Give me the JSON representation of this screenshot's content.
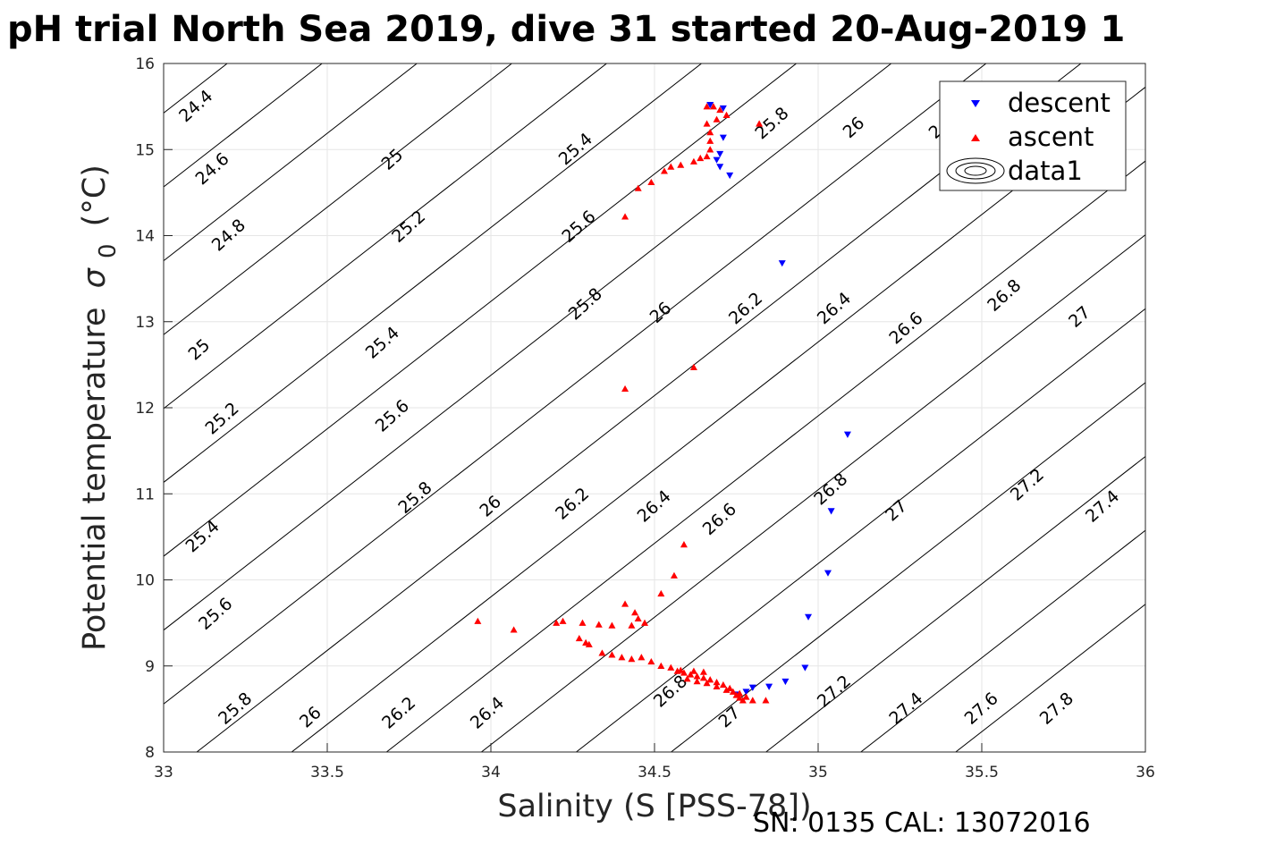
{
  "chart_data": {
    "type": "scatter",
    "title": "pH trial North Sea 2019, dive 31 started 20-Aug-2019 1",
    "xlabel": "Salinity (S [PSS-78])",
    "ylabel": "Potential temperature",
    "ylabel_symbol": "σ",
    "ylabel_sub": "0",
    "ylabel_unit": "(°C)",
    "footer": "SN: 0135  CAL: 13072016",
    "xlim": [
      33,
      36
    ],
    "ylim": [
      8,
      16
    ],
    "xticks": [
      "33",
      "33.5",
      "34",
      "34.5",
      "35",
      "35.5",
      "36"
    ],
    "yticks": [
      "8",
      "9",
      "10",
      "11",
      "12",
      "13",
      "14",
      "15",
      "16"
    ],
    "grid": true,
    "legend_position": "top-right",
    "legend": [
      "descent",
      "ascent",
      "data1"
    ],
    "contour_levels": [
      24.4,
      24.6,
      24.8,
      25,
      25.2,
      25.4,
      25.6,
      25.8,
      26,
      26.2,
      26.4,
      26.6,
      26.8,
      27,
      27.2,
      27.4,
      27.6,
      27.8
    ],
    "contour_labels": [
      {
        "t": "24.4",
        "s": 33.1,
        "y": 15.5
      },
      {
        "t": "24.6",
        "s": 33.15,
        "y": 14.77
      },
      {
        "t": "24.8",
        "s": 33.2,
        "y": 14.0
      },
      {
        "t": "25",
        "s": 33.11,
        "y": 12.67
      },
      {
        "t": "25.2",
        "s": 33.18,
        "y": 11.87
      },
      {
        "t": "25.4",
        "s": 33.12,
        "y": 10.5
      },
      {
        "t": "25.6",
        "s": 33.16,
        "y": 9.6
      },
      {
        "t": "25.8",
        "s": 33.22,
        "y": 8.5
      },
      {
        "t": "26",
        "s": 33.45,
        "y": 8.4
      },
      {
        "t": "26.2",
        "s": 33.72,
        "y": 8.45
      },
      {
        "t": "26.4",
        "s": 33.99,
        "y": 8.45
      },
      {
        "t": "26.8",
        "s": 34.55,
        "y": 8.7
      },
      {
        "t": "27",
        "s": 34.73,
        "y": 8.4
      },
      {
        "t": "27.2",
        "s": 35.05,
        "y": 8.7
      },
      {
        "t": "27.4",
        "s": 35.27,
        "y": 8.5
      },
      {
        "t": "27.6",
        "s": 35.5,
        "y": 8.5
      },
      {
        "t": "27.8",
        "s": 35.73,
        "y": 8.5
      },
      {
        "t": "25",
        "s": 33.7,
        "y": 14.88
      },
      {
        "t": "25.2",
        "s": 33.75,
        "y": 14.1
      },
      {
        "t": "25.4",
        "s": 33.67,
        "y": 12.75
      },
      {
        "t": "25.6",
        "s": 33.7,
        "y": 11.9
      },
      {
        "t": "25.8",
        "s": 33.77,
        "y": 10.95
      },
      {
        "t": "26",
        "s": 34.0,
        "y": 10.85
      },
      {
        "t": "26.2",
        "s": 34.25,
        "y": 10.88
      },
      {
        "t": "26.4",
        "s": 34.5,
        "y": 10.85
      },
      {
        "t": "26.6",
        "s": 34.7,
        "y": 10.7
      },
      {
        "t": "26.8",
        "s": 35.04,
        "y": 11.05
      },
      {
        "t": "27",
        "s": 35.24,
        "y": 10.8
      },
      {
        "t": "27.2",
        "s": 35.64,
        "y": 11.1
      },
      {
        "t": "27.4",
        "s": 35.87,
        "y": 10.85
      },
      {
        "t": "25.4",
        "s": 34.26,
        "y": 15.0
      },
      {
        "t": "25.6",
        "s": 34.27,
        "y": 14.1
      },
      {
        "t": "25.8",
        "s": 34.29,
        "y": 13.2
      },
      {
        "t": "26",
        "s": 34.52,
        "y": 13.1
      },
      {
        "t": "26.2",
        "s": 34.78,
        "y": 13.15
      },
      {
        "t": "26.4",
        "s": 35.05,
        "y": 13.15
      },
      {
        "t": "26.6",
        "s": 35.27,
        "y": 12.92
      },
      {
        "t": "26.8",
        "s": 35.57,
        "y": 13.3
      },
      {
        "t": "27",
        "s": 35.8,
        "y": 13.05
      },
      {
        "t": "25.8",
        "s": 34.86,
        "y": 15.3
      },
      {
        "t": "26",
        "s": 35.11,
        "y": 15.25
      },
      {
        "t": "2",
        "s": 35.36,
        "y": 15.2
      }
    ],
    "series": [
      {
        "name": "descent",
        "marker": "triangle-down",
        "color": "#0000ff",
        "points": [
          [
            34.67,
            15.52
          ],
          [
            34.71,
            15.48
          ],
          [
            34.71,
            15.14
          ],
          [
            34.7,
            14.95
          ],
          [
            34.69,
            14.88
          ],
          [
            34.7,
            14.8
          ],
          [
            34.73,
            14.7
          ],
          [
            34.89,
            13.68
          ],
          [
            35.09,
            11.69
          ],
          [
            35.04,
            10.8
          ],
          [
            35.03,
            10.08
          ],
          [
            34.97,
            9.57
          ],
          [
            34.96,
            8.98
          ],
          [
            34.9,
            8.82
          ],
          [
            34.85,
            8.76
          ],
          [
            34.8,
            8.75
          ],
          [
            34.78,
            8.7
          ],
          [
            34.75,
            8.67
          ]
        ]
      },
      {
        "name": "ascent",
        "marker": "triangle-up",
        "color": "#ff0000",
        "points": [
          [
            34.66,
            15.5
          ],
          [
            34.68,
            15.5
          ],
          [
            34.7,
            15.46
          ],
          [
            34.72,
            15.4
          ],
          [
            34.69,
            15.35
          ],
          [
            34.66,
            15.3
          ],
          [
            34.67,
            15.2
          ],
          [
            34.67,
            15.1
          ],
          [
            34.67,
            15.0
          ],
          [
            34.66,
            14.92
          ],
          [
            34.64,
            14.9
          ],
          [
            34.62,
            14.86
          ],
          [
            34.58,
            14.82
          ],
          [
            34.55,
            14.8
          ],
          [
            34.53,
            14.75
          ],
          [
            34.49,
            14.62
          ],
          [
            34.45,
            14.55
          ],
          [
            34.41,
            14.22
          ],
          [
            34.82,
            15.3
          ],
          [
            34.62,
            12.47
          ],
          [
            34.41,
            12.22
          ],
          [
            34.59,
            10.41
          ],
          [
            34.56,
            10.05
          ],
          [
            34.52,
            9.84
          ],
          [
            33.96,
            9.52
          ],
          [
            34.07,
            9.42
          ],
          [
            34.2,
            9.5
          ],
          [
            34.22,
            9.52
          ],
          [
            34.28,
            9.5
          ],
          [
            34.33,
            9.48
          ],
          [
            34.37,
            9.47
          ],
          [
            34.41,
            9.72
          ],
          [
            34.44,
            9.62
          ],
          [
            34.45,
            9.55
          ],
          [
            34.47,
            9.5
          ],
          [
            34.43,
            9.47
          ],
          [
            34.27,
            9.32
          ],
          [
            34.29,
            9.27
          ],
          [
            34.3,
            9.25
          ],
          [
            34.34,
            9.15
          ],
          [
            34.37,
            9.13
          ],
          [
            34.4,
            9.1
          ],
          [
            34.43,
            9.08
          ],
          [
            34.46,
            9.1
          ],
          [
            34.49,
            9.05
          ],
          [
            34.52,
            9.0
          ],
          [
            34.55,
            8.98
          ],
          [
            34.57,
            8.94
          ],
          [
            34.59,
            8.92
          ],
          [
            34.61,
            8.9
          ],
          [
            34.63,
            8.88
          ],
          [
            34.65,
            8.86
          ],
          [
            34.67,
            8.84
          ],
          [
            34.69,
            8.81
          ],
          [
            34.71,
            8.78
          ],
          [
            34.73,
            8.74
          ],
          [
            34.74,
            8.7
          ],
          [
            34.75,
            8.66
          ],
          [
            34.76,
            8.63
          ],
          [
            34.77,
            8.6
          ],
          [
            34.8,
            8.6
          ],
          [
            34.84,
            8.6
          ],
          [
            34.6,
            8.85
          ],
          [
            34.63,
            8.82
          ],
          [
            34.66,
            8.8
          ],
          [
            34.69,
            8.76
          ],
          [
            34.72,
            8.72
          ],
          [
            34.76,
            8.68
          ],
          [
            34.78,
            8.64
          ],
          [
            34.58,
            8.95
          ],
          [
            34.62,
            8.94
          ],
          [
            34.65,
            8.93
          ]
        ]
      }
    ]
  }
}
